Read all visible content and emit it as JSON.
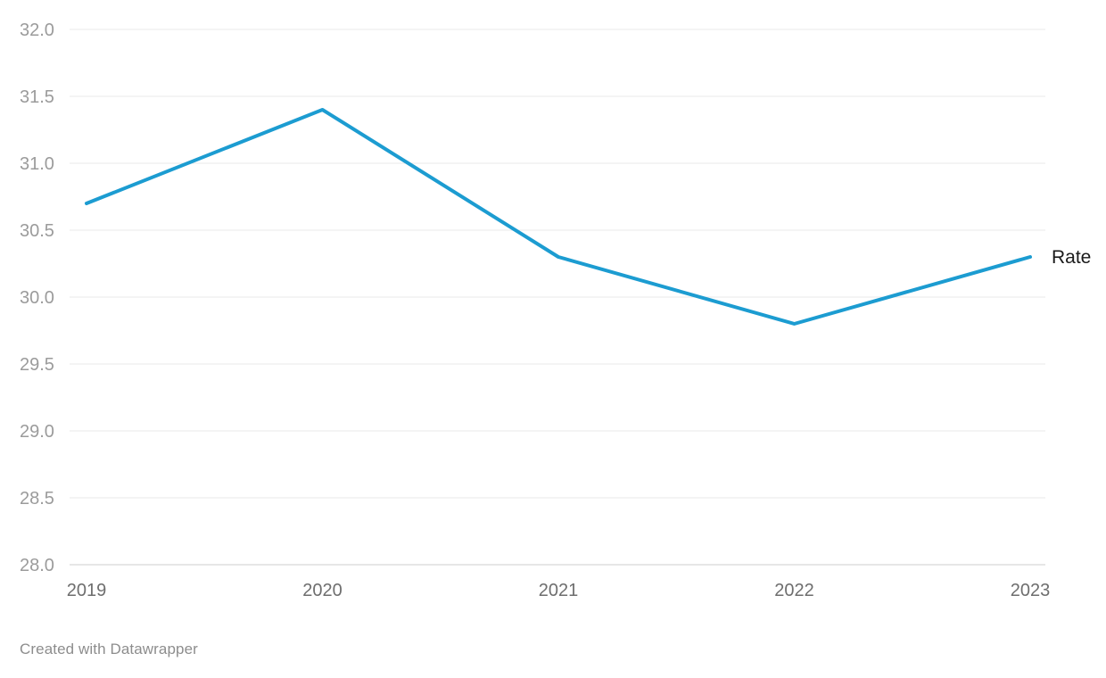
{
  "chart_data": {
    "type": "line",
    "x": [
      "2019",
      "2020",
      "2021",
      "2022",
      "2023"
    ],
    "series": [
      {
        "name": "Rate",
        "values": [
          30.7,
          31.4,
          30.3,
          29.8,
          30.3
        ]
      }
    ],
    "title": "",
    "xlabel": "",
    "ylabel": "",
    "ylim": [
      28.0,
      32.0
    ],
    "ytick_step": 0.5,
    "ytick_decimals": 1,
    "grid": true,
    "legend_position": "line-end-label"
  },
  "colors": {
    "line": "#1c9cd1",
    "gridline": "#e8e8e8",
    "baseline": "#cccccc",
    "y_tick_label": "#9b9b9b",
    "x_tick_label": "#6e6e6e",
    "series_label": "#1a1a1a"
  },
  "footer": {
    "credit": "Created with Datawrapper"
  }
}
